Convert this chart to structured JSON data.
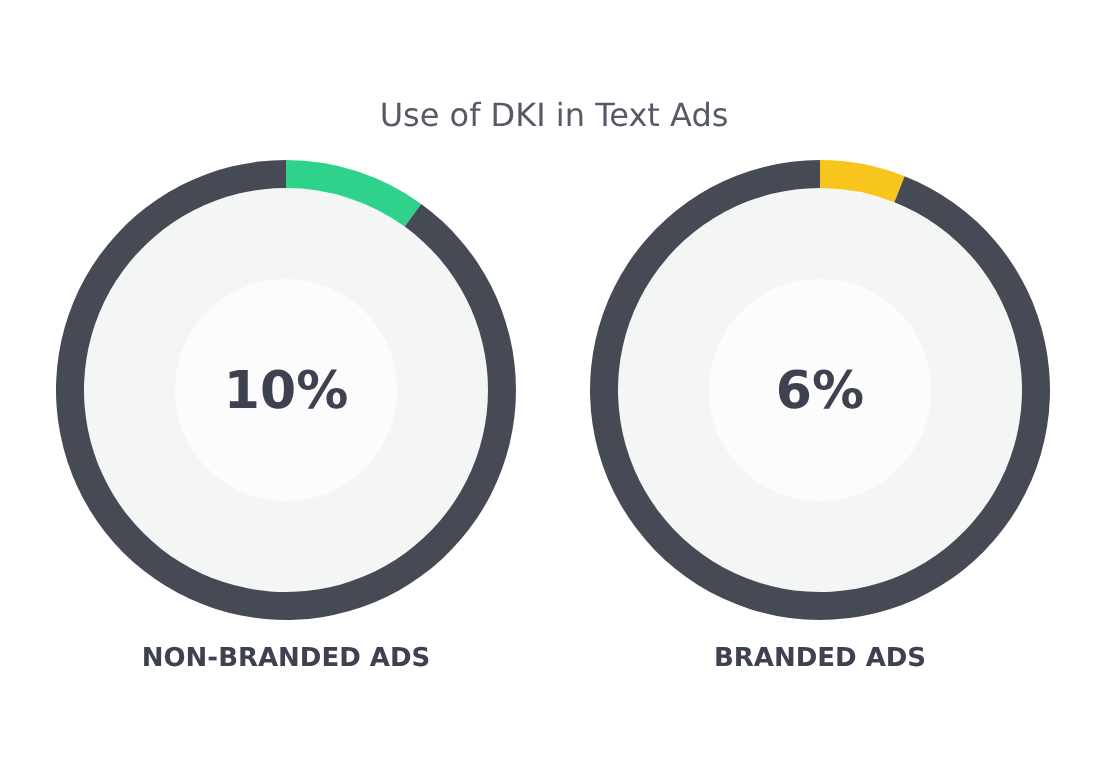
{
  "chart_data": [
    {
      "type": "donut",
      "title": "Use of DKI in Text Ads",
      "xlabel": "NON-BRANDED ADS",
      "categories": [
        null,
        null
      ],
      "values": [
        10,
        90
      ],
      "colors": [
        "#2fd28b",
        "#464a55"
      ],
      "annotations": [
        "10%"
      ]
    },
    {
      "type": "donut",
      "xlabel": "BRANDED ADS",
      "categories": [
        null,
        null
      ],
      "values": [
        6,
        94
      ],
      "colors": [
        "#f7c51b",
        "#464a55"
      ],
      "annotations": [
        "6%"
      ]
    }
  ]
}
